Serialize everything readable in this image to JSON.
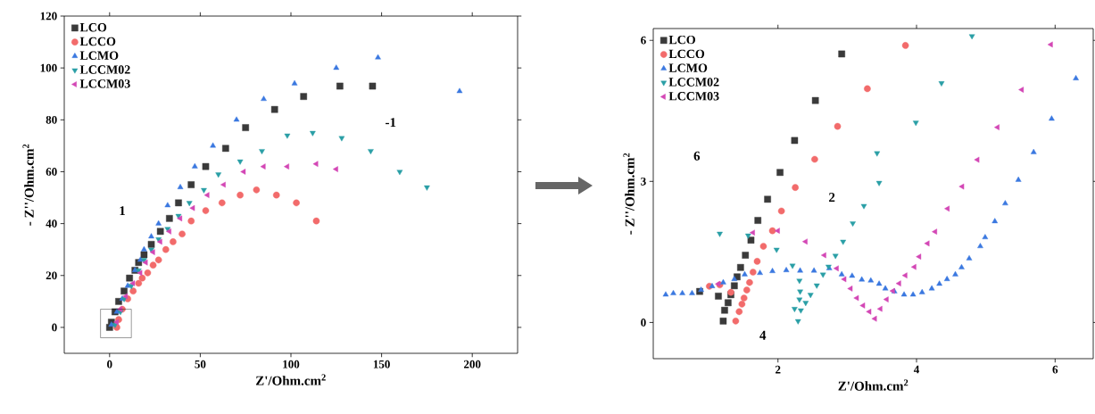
{
  "chart_data": [
    {
      "type": "scatter",
      "xlabel": "Z'/Ohm.cm$^{2}$",
      "ylabel": "- Z''/Ohm.cm$^{2}$",
      "xlim": [
        -25,
        225
      ],
      "ylim": [
        -10,
        120
      ],
      "xticks": [
        0,
        50,
        100,
        150,
        200
      ],
      "yticks": [
        0,
        20,
        40,
        60,
        80,
        100,
        120
      ],
      "legend": "top left",
      "series": [
        {
          "name": "LCO",
          "color": "#3a3a3a",
          "marker": "square",
          "x": [
            127,
            145,
            107,
            91,
            75,
            64,
            53,
            45,
            38,
            33,
            28,
            23,
            19,
            16,
            14,
            11,
            8,
            5,
            3,
            1,
            0
          ],
          "values": [
            93,
            93,
            89,
            84,
            77,
            69,
            62,
            55,
            48,
            42,
            37,
            32,
            28,
            25,
            22,
            19,
            14,
            10,
            6,
            2,
            0
          ]
        },
        {
          "name": "LCCO",
          "color": "#f26b6b",
          "marker": "circle",
          "x": [
            114,
            103,
            92,
            81,
            72,
            62,
            53,
            45,
            40,
            35,
            31,
            27,
            24,
            21,
            18,
            16,
            13,
            10,
            7,
            5,
            4
          ],
          "values": [
            41,
            48,
            51,
            53,
            51,
            48,
            45,
            41,
            36,
            33,
            30,
            26,
            24,
            21,
            19,
            17,
            14,
            11,
            7,
            3,
            0
          ]
        },
        {
          "name": "LCMO",
          "color": "#3b78e0",
          "marker": "triangle",
          "x": [
            193,
            148,
            125,
            102,
            85,
            70,
            57,
            47,
            39,
            32,
            27,
            23,
            19,
            17,
            14,
            10,
            7,
            4,
            1
          ],
          "values": [
            91,
            104,
            100,
            94,
            88,
            80,
            70,
            62,
            54,
            47,
            40,
            35,
            30,
            26,
            22,
            16,
            11,
            6,
            1
          ]
        },
        {
          "name": "LCCM02",
          "color": "#2a9fa6",
          "marker": "triangle-down",
          "x": [
            175,
            160,
            144,
            128,
            112,
            98,
            84,
            72,
            60,
            52,
            44,
            38,
            32,
            27,
            23,
            19,
            16,
            12,
            8,
            6,
            3
          ],
          "values": [
            54,
            60,
            68,
            73,
            75,
            74,
            68,
            64,
            59,
            53,
            48,
            43,
            38,
            34,
            30,
            26,
            22,
            16,
            11,
            6,
            1
          ]
        },
        {
          "name": "LCCM03",
          "color": "#d347b5",
          "marker": "triangle-left",
          "x": [
            125,
            114,
            98,
            85,
            74,
            63,
            54,
            46,
            39,
            33,
            28,
            24,
            20,
            17,
            13,
            9,
            6,
            4
          ],
          "values": [
            61,
            63,
            62,
            62,
            60,
            55,
            51,
            46,
            42,
            37,
            33,
            29,
            25,
            21,
            17,
            12,
            7,
            2
          ]
        }
      ],
      "annotations": [
        "1",
        "-1"
      ]
    },
    {
      "type": "scatter",
      "xlabel": "Z'/Ohm.cm$^{2}$",
      "ylabel": "- Z''/Ohm.cm$^{2}$",
      "xlim": [
        0.2,
        6.55
      ],
      "ylim": [
        -0.77,
        6.25
      ],
      "xticks": [
        2,
        4,
        6
      ],
      "yticks": [
        0,
        3,
        6
      ],
      "legend": "top left",
      "series": [
        {
          "name": "LCO",
          "color": "#3a3a3a",
          "marker": "square",
          "x": [
            2.92,
            2.54,
            2.24,
            2.03,
            1.85,
            1.71,
            1.61,
            1.53,
            1.46,
            1.41,
            1.37,
            1.32,
            1.28,
            1.23,
            1.21,
            1.14,
            0.87
          ],
          "values": [
            5.71,
            4.72,
            3.87,
            3.19,
            2.62,
            2.17,
            1.75,
            1.43,
            1.17,
            0.97,
            0.78,
            0.59,
            0.42,
            0.26,
            0.03,
            0.56,
            0.66
          ]
        },
        {
          "name": "LCCO",
          "color": "#f26b6b",
          "marker": "circle",
          "x": [
            3.84,
            3.29,
            2.86,
            2.53,
            2.25,
            2.05,
            1.92,
            1.79,
            1.7,
            1.64,
            1.59,
            1.55,
            1.51,
            1.48,
            1.44,
            1.39,
            1.32,
            1.16,
            1.01
          ],
          "values": [
            5.89,
            4.97,
            4.17,
            3.47,
            2.87,
            2.37,
            1.95,
            1.62,
            1.3,
            1.07,
            0.85,
            0.69,
            0.52,
            0.39,
            0.23,
            0.03,
            0.64,
            0.8,
            0.77
          ]
        },
        {
          "name": "LCMO",
          "color": "#3b78e0",
          "marker": "triangle",
          "x": [
            6.3,
            5.95,
            5.69,
            5.47,
            5.28,
            5.13,
            4.99,
            4.92,
            4.76,
            4.65,
            4.56,
            4.44,
            4.33,
            4.22,
            4.08,
            3.95,
            3.82,
            3.68,
            3.55,
            3.46,
            3.34,
            3.21,
            3.07,
            2.92,
            2.74,
            2.52,
            2.32,
            2.12,
            1.92,
            1.74,
            1.52,
            1.37,
            1.21,
            1.05,
            0.89,
            0.76,
            0.62,
            0.49,
            0.38
          ],
          "values": [
            5.19,
            4.33,
            3.62,
            3.03,
            2.53,
            2.15,
            1.81,
            1.62,
            1.36,
            1.17,
            1.02,
            0.92,
            0.82,
            0.72,
            0.64,
            0.59,
            0.59,
            0.66,
            0.72,
            0.82,
            0.89,
            0.91,
            0.99,
            1.02,
            1.15,
            1.1,
            1.1,
            1.11,
            1.09,
            1.05,
            1.02,
            0.92,
            0.85,
            0.77,
            0.69,
            0.62,
            0.62,
            0.62,
            0.59
          ]
        },
        {
          "name": "LCCM02",
          "color": "#2a9fa6",
          "marker": "triangle-down",
          "x": [
            4.8,
            4.36,
            3.99,
            3.43,
            3.46,
            3.24,
            3.08,
            2.94,
            2.83,
            2.73,
            2.65,
            2.56,
            2.47,
            2.4,
            2.33,
            2.29,
            2.24,
            2.31,
            2.32,
            2.31,
            2.21,
            1.98,
            1.57,
            1.16
          ],
          "values": [
            6.09,
            5.09,
            4.25,
            3.6,
            2.97,
            2.48,
            2.11,
            1.72,
            1.42,
            1.19,
            1.02,
            0.79,
            0.59,
            0.42,
            0.26,
            0.03,
            0.29,
            0.49,
            0.66,
            0.89,
            1.21,
            1.55,
            1.85,
            1.89
          ]
        },
        {
          "name": "LCCM03",
          "color": "#d347b5",
          "marker": "triangle-left",
          "x": [
            5.94,
            5.52,
            5.17,
            4.88,
            4.66,
            4.45,
            4.27,
            4.16,
            4.04,
            3.97,
            3.84,
            3.75,
            3.66,
            3.57,
            3.48,
            3.4,
            3.32,
            3.23,
            3.14,
            3.05,
            2.96,
            2.85,
            2.67,
            2.4,
            2.0,
            1.64,
            1.14
          ],
          "values": [
            5.91,
            4.95,
            4.15,
            3.46,
            2.89,
            2.42,
            1.93,
            1.68,
            1.4,
            1.18,
            1.0,
            0.83,
            0.67,
            0.49,
            0.29,
            0.08,
            0.23,
            0.36,
            0.52,
            0.72,
            0.92,
            1.15,
            1.43,
            1.72,
            1.95,
            1.91,
            0.82
          ]
        }
      ],
      "annotations": [
        "6",
        "2",
        "4"
      ]
    }
  ]
}
